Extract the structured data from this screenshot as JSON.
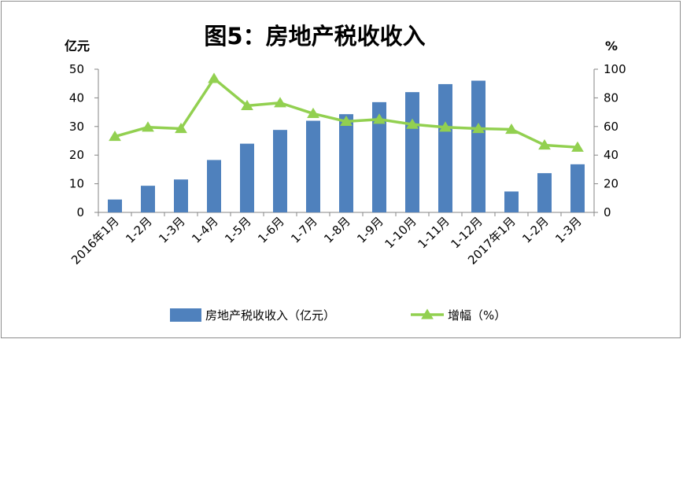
{
  "chart_data": {
    "type": "bar+line",
    "title": "图5：房地产税收收入",
    "y_left_unit": "亿元",
    "y_right_unit": "%",
    "y_left_lim": [
      0,
      50
    ],
    "y_left_ticks": [
      "0",
      "10",
      "20",
      "30",
      "40",
      "50"
    ],
    "y_right_lim": [
      0,
      100
    ],
    "y_right_ticks": [
      "0",
      "20",
      "40",
      "60",
      "80",
      "100"
    ],
    "categories": [
      "2016年1月",
      "1-2月",
      "1-3月",
      "1-4月",
      "1-5月",
      "1-6月",
      "1-7月",
      "1-8月",
      "1-9月",
      "1-10月",
      "1-11月",
      "1-12月",
      "2017年1月",
      "1-2月",
      "1-3月"
    ],
    "series": [
      {
        "name": "房地产税收收入（亿元）",
        "type": "bar",
        "axis": "left",
        "color": "#4f81bd",
        "values": [
          4.5,
          9.3,
          11.5,
          18.3,
          24,
          28.8,
          32,
          34.3,
          38.5,
          42,
          44.8,
          46,
          7.3,
          13.7,
          16.8
        ]
      },
      {
        "name": "增幅（%）",
        "type": "line",
        "axis": "right",
        "color": "#92d050",
        "marker": "triangle",
        "values": [
          53,
          59.5,
          58.5,
          93.5,
          74.5,
          76.5,
          69,
          63.5,
          65,
          61.5,
          59.5,
          58.5,
          58,
          47,
          45.5
        ]
      }
    ],
    "grid": false,
    "legend_position": "bottom"
  }
}
